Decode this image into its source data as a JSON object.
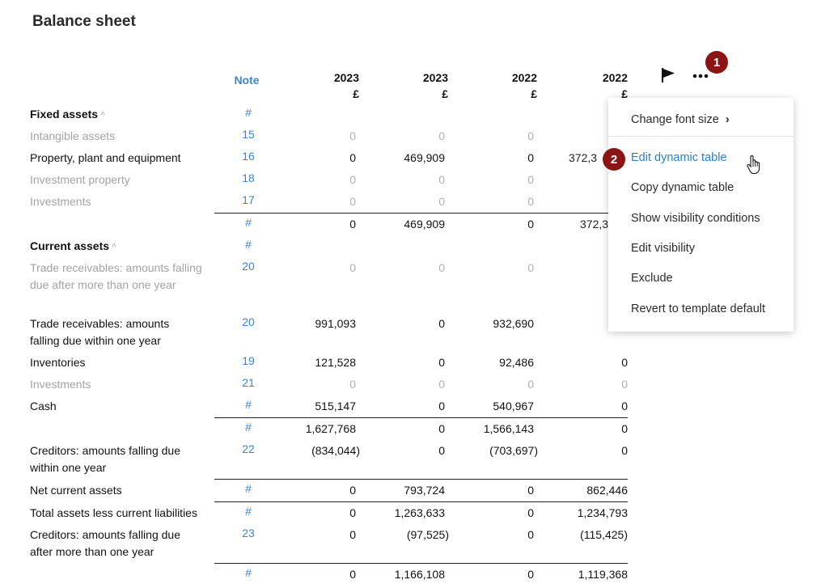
{
  "page_title": "Balance sheet",
  "header": {
    "note": "Note",
    "columns": [
      {
        "year": "2023",
        "unit": "£"
      },
      {
        "year": "2023",
        "unit": "£"
      },
      {
        "year": "2022",
        "unit": "£"
      },
      {
        "year": "2022",
        "unit": "£"
      }
    ]
  },
  "rows": [
    {
      "label": "Fixed assets",
      "note": "#",
      "values": [
        "",
        "",
        "",
        ""
      ]
    },
    {
      "label": "Intangible assets",
      "note": "15",
      "values": [
        "0",
        "0",
        "0",
        ""
      ]
    },
    {
      "label": "Property, plant and equipment",
      "note": "16",
      "values": [
        "0",
        "469,909",
        "0",
        "372,3"
      ]
    },
    {
      "label": "Investment property",
      "note": "18",
      "values": [
        "0",
        "0",
        "0",
        ""
      ]
    },
    {
      "label": "Investments",
      "note": "17",
      "values": [
        "0",
        "0",
        "0",
        ""
      ]
    },
    {
      "label": "",
      "note": "#",
      "values": [
        "0",
        "469,909",
        "0",
        "372,3"
      ]
    },
    {
      "label": "Current assets",
      "note": "#",
      "values": [
        "",
        "",
        "",
        ""
      ]
    },
    {
      "label": "Trade receivables: amounts falling due after more than one year",
      "note": "20",
      "values": [
        "0",
        "0",
        "0",
        ""
      ]
    },
    {
      "label": "Trade receivables: amounts falling due within one year",
      "note": "20",
      "values": [
        "991,093",
        "0",
        "932,690",
        ""
      ]
    },
    {
      "label": "Inventories",
      "note": "19",
      "values": [
        "121,528",
        "0",
        "92,486",
        "0"
      ]
    },
    {
      "label": "Investments",
      "note": "21",
      "values": [
        "0",
        "0",
        "0",
        "0"
      ]
    },
    {
      "label": "Cash",
      "note": "#",
      "values": [
        "515,147",
        "0",
        "540,967",
        "0"
      ]
    },
    {
      "label": "",
      "note": "#",
      "values": [
        "1,627,768",
        "0",
        "1,566,143",
        "0"
      ]
    },
    {
      "label": "Creditors: amounts falling due within one year",
      "note": "22",
      "values": [
        "(834,044)",
        "0",
        "(703,697)",
        "0"
      ]
    },
    {
      "label": "Net current assets",
      "note": "#",
      "values": [
        "0",
        "793,724",
        "0",
        "862,446"
      ]
    },
    {
      "label": "Total assets less current liabilities",
      "note": "#",
      "values": [
        "0",
        "1,263,633",
        "0",
        "1,234,793"
      ]
    },
    {
      "label": "Creditors: amounts falling due after more than one year",
      "note": "23",
      "values": [
        "0",
        "(97,525)",
        "0",
        "(115,425)"
      ]
    },
    {
      "label": "",
      "note": "#",
      "values": [
        "0",
        "1,166,108",
        "0",
        "1,119,368"
      ]
    }
  ],
  "toolbar": {
    "flag_icon": "flag-icon",
    "more_icon": "ellipsis-icon",
    "badge_1": "1",
    "badge_2": "2"
  },
  "menu": {
    "change_font_size": "Change font size",
    "chevron": "›",
    "edit_dynamic_table": "Edit dynamic table",
    "copy_dynamic_table": "Copy dynamic table",
    "show_visibility_conditions": "Show visibility conditions",
    "edit_visibility": "Edit visibility",
    "exclude": "Exclude",
    "revert_to_template_default": "Revert to template default"
  },
  "colors": {
    "note_link": "#3d85c6",
    "badge": "#8b1414",
    "menu_highlight": "#2c7fc1",
    "dim_text": "#a3a3a3"
  }
}
